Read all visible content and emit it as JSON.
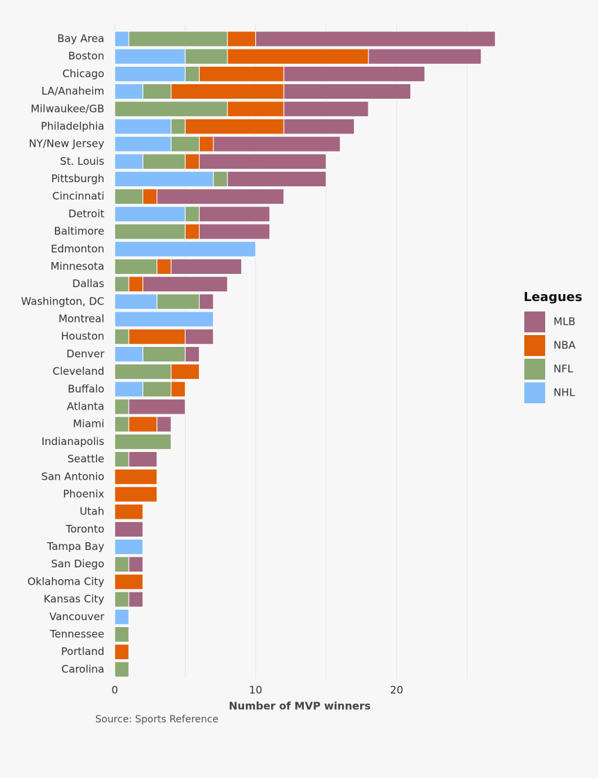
{
  "chart_data": {
    "type": "stacked_bar",
    "orientation": "horizontal",
    "xlabel": "Number of MVP winners",
    "source": "Source: Sports Reference",
    "legend_title": "Leagues",
    "legend_position": "right",
    "categories": [
      "Bay Area",
      "Boston",
      "Chicago",
      "LA/Anaheim",
      "Milwaukee/GB",
      "Philadelphia",
      "NY/New Jersey",
      "St. Louis",
      "Pittsburgh",
      "Cincinnati",
      "Detroit",
      "Baltimore",
      "Edmonton",
      "Minnesota",
      "Dallas",
      "Washington, DC",
      "Montreal",
      "Houston",
      "Denver",
      "Cleveland",
      "Buffalo",
      "Atlanta",
      "Miami",
      "Indianapolis",
      "Seattle",
      "San Antonio",
      "Phoenix",
      "Utah",
      "Toronto",
      "Tampa Bay",
      "San Diego",
      "Oklahoma City",
      "Kansas City",
      "Vancouver",
      "Tennessee",
      "Portland",
      "Carolina"
    ],
    "xlim": [
      0,
      27
    ],
    "xticks": [
      0,
      10,
      20
    ],
    "minor_xticks": [
      5,
      15,
      25
    ],
    "grid": true,
    "series": [
      {
        "name": "MLB",
        "color": "#a3657f",
        "values": [
          17,
          8,
          10,
          9,
          6,
          5,
          9,
          9,
          7,
          9,
          5,
          5,
          0,
          5,
          6,
          1,
          0,
          2,
          1,
          0,
          0,
          4,
          1,
          0,
          2,
          0,
          0,
          0,
          2,
          0,
          1,
          0,
          1,
          0,
          0,
          0,
          0
        ]
      },
      {
        "name": "NBA",
        "color": "#e15f05",
        "values": [
          2,
          10,
          6,
          8,
          4,
          7,
          1,
          1,
          0,
          1,
          0,
          1,
          0,
          1,
          1,
          0,
          0,
          4,
          0,
          2,
          1,
          0,
          2,
          0,
          0,
          3,
          3,
          2,
          0,
          0,
          0,
          2,
          0,
          0,
          0,
          1,
          0
        ]
      },
      {
        "name": "NFL",
        "color": "#8ca873",
        "values": [
          7,
          3,
          1,
          2,
          8,
          1,
          2,
          3,
          1,
          2,
          1,
          5,
          0,
          3,
          1,
          3,
          0,
          1,
          3,
          4,
          2,
          1,
          1,
          4,
          1,
          0,
          0,
          0,
          0,
          0,
          1,
          0,
          1,
          0,
          1,
          0,
          1
        ]
      },
      {
        "name": "NHL",
        "color": "#84bdfb",
        "values": [
          1,
          5,
          5,
          2,
          0,
          4,
          4,
          2,
          7,
          0,
          5,
          0,
          10,
          0,
          0,
          3,
          7,
          0,
          2,
          0,
          2,
          0,
          0,
          0,
          0,
          0,
          0,
          0,
          0,
          2,
          0,
          0,
          0,
          1,
          0,
          0,
          0
        ]
      }
    ],
    "stack_order": [
      "NHL",
      "NFL",
      "NBA",
      "MLB"
    ]
  }
}
